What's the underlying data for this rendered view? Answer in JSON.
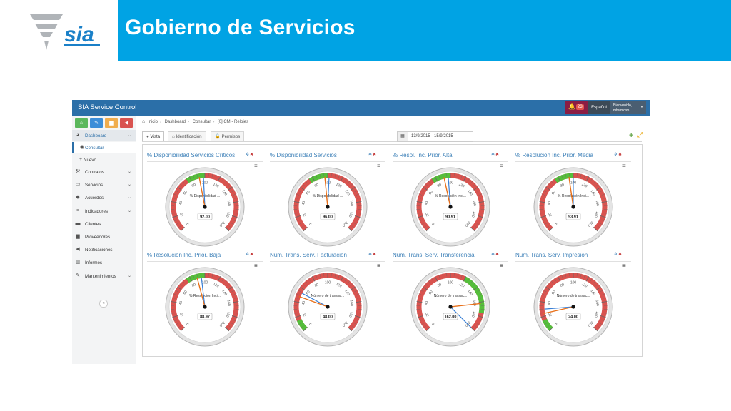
{
  "banner": {
    "title": "Gobierno de Servicios",
    "color": "#00a3e4"
  },
  "logo": {
    "text": "sia",
    "name": "sia-logo"
  },
  "app": {
    "title": "SIA Service Control",
    "notifications": {
      "count": "23"
    },
    "language": "Español",
    "user": {
      "greeting": "Bienvenido,",
      "name": "mformoso"
    }
  },
  "quick_buttons": [
    {
      "name": "home-icon",
      "color": "#5cb85c",
      "glyph": "⌂"
    },
    {
      "name": "pencil-icon",
      "color": "#3d8ed8",
      "glyph": "✎"
    },
    {
      "name": "briefcase-icon",
      "color": "#f0ad4e",
      "glyph": "▆"
    },
    {
      "name": "megaphone-icon",
      "color": "#d9534f",
      "glyph": "◀"
    }
  ],
  "sidebar": {
    "items": [
      {
        "label": "Dashboard",
        "icon": "dashboard-icon",
        "chevron": true,
        "active": true
      },
      {
        "label": "Consultar",
        "icon": "eye-icon",
        "sub": true,
        "selected": true
      },
      {
        "label": "Nuevo",
        "icon": "plus-icon",
        "sub": true
      },
      {
        "label": "Contratos",
        "icon": "gavel-icon",
        "chevron": true
      },
      {
        "label": "Servicios",
        "icon": "monitor-icon",
        "chevron": true
      },
      {
        "label": "Acuerdos",
        "icon": "tag-icon",
        "chevron": true
      },
      {
        "label": "Indicadores",
        "icon": "list-icon",
        "chevron": true
      },
      {
        "label": "Clientes",
        "icon": "truck-icon"
      },
      {
        "label": "Proveedores",
        "icon": "briefcase-icon"
      },
      {
        "label": "Notificaciones",
        "icon": "bullhorn-icon"
      },
      {
        "label": "Informes",
        "icon": "bar-chart-icon"
      },
      {
        "label": "Mantenimientos",
        "icon": "edit-icon",
        "chevron": true
      }
    ]
  },
  "breadcrumb": [
    "Inicio",
    "Dashboard",
    "Consultar",
    "[0] CM - Relojes"
  ],
  "tabs": [
    {
      "label": "Vista",
      "icon": "dashboard-icon",
      "active": true
    },
    {
      "label": "Identificación",
      "icon": "home-icon"
    },
    {
      "label": "Permisos",
      "icon": "unlock-icon"
    }
  ],
  "date_range": "13/9/2015 - 15/9/2015",
  "gauges": [
    {
      "title": "% Disponibilidad Servicios Críticos",
      "label": "% Disponibilidad ...",
      "value": 92.0,
      "display": "92.00",
      "max": 200,
      "green": [
        75,
        100
      ]
    },
    {
      "title": "% Disponibilidad Servicios",
      "label": "% Disponibilidad ...",
      "value": 96.0,
      "display": "96.00",
      "max": 200,
      "green": [
        75,
        100
      ]
    },
    {
      "title": "% Resol. Inc. Prior. Alta",
      "label": "% Resolución Inci...",
      "value": 90.91,
      "display": "90.91",
      "max": 200,
      "green": [
        75,
        100
      ]
    },
    {
      "title": "% Resolucion Inc. Prior. Media",
      "label": "% Resolución Inci...",
      "value": 93.91,
      "display": "93.91",
      "max": 200,
      "green": [
        75,
        100
      ]
    },
    {
      "title": "% Resolución Inc. Prior. Baja",
      "label": "% Resolución Inci...",
      "value": 88.97,
      "display": "88.97",
      "max": 200,
      "green": [
        75,
        100
      ]
    },
    {
      "title": "Num. Trans. Serv. Facturación",
      "label": "Número de transac...",
      "value": 48.0,
      "display": "48.00",
      "max": 200,
      "green": [
        0,
        15
      ]
    },
    {
      "title": "Num. Trans. Serv. Transferencia",
      "label": "Número de transac...",
      "value": 162.0,
      "display": "162.00",
      "max": 200,
      "green": [
        120,
        175
      ]
    },
    {
      "title": "Num. Trans. Serv. Impresión",
      "label": "Número de transac...",
      "value": 24.0,
      "display": "24.00",
      "max": 200,
      "green": [
        0,
        15
      ]
    }
  ],
  "gauge_ticks": [
    "0",
    "20",
    "40",
    "60",
    "80",
    "100",
    "120",
    "140",
    "160",
    "180",
    "200"
  ],
  "colors": {
    "topbar": "#2b6fa8",
    "gauge_red": "#d9534f",
    "gauge_green": "#55bf3b",
    "needle_a": "#e8701a",
    "needle_b": "#3a7fd5"
  }
}
